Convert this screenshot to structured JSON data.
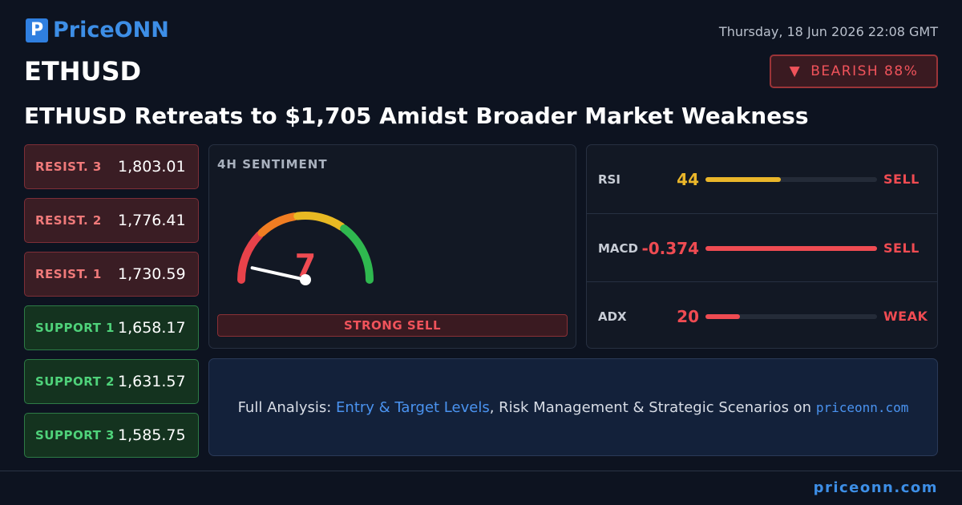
{
  "header": {
    "logo": "PriceONN",
    "datetime": "Thursday, 18 Jun 2026 22:08 GMT",
    "symbol": "ETHUSD",
    "badge": "BEARISH 88%",
    "headline": "ETHUSD Retreats to $1,705 Amidst Broader Market Weakness"
  },
  "levels": [
    {
      "label": "RESIST. 3",
      "value": "1,803.01"
    },
    {
      "label": "RESIST. 2",
      "value": "1,776.41"
    },
    {
      "label": "RESIST. 1",
      "value": "1,730.59"
    },
    {
      "label": "SUPPORT 1",
      "value": "1,658.17"
    },
    {
      "label": "SUPPORT 2",
      "value": "1,631.57"
    },
    {
      "label": "SUPPORT 3",
      "value": "1,585.75"
    }
  ],
  "sentiment": {
    "title": "4H SENTIMENT",
    "score": 7,
    "verdict": "STRONG SELL"
  },
  "indicators": [
    {
      "name": "RSI",
      "value": 44,
      "signal": "SELL",
      "color": "#eab62a"
    },
    {
      "name": "MACD",
      "value": -0.374,
      "signal": "SELL",
      "color": "#ef4b52"
    },
    {
      "name": "ADX",
      "value": 20,
      "signal": "WEAK",
      "color": "#ef4b52"
    }
  ],
  "banner": {
    "lead": "Full Analysis:",
    "link": "Entry & Target Levels",
    "rest": ", Risk Management & Strategic Scenarios on",
    "site": "priceonn.com"
  },
  "footer": "priceonn.com"
}
